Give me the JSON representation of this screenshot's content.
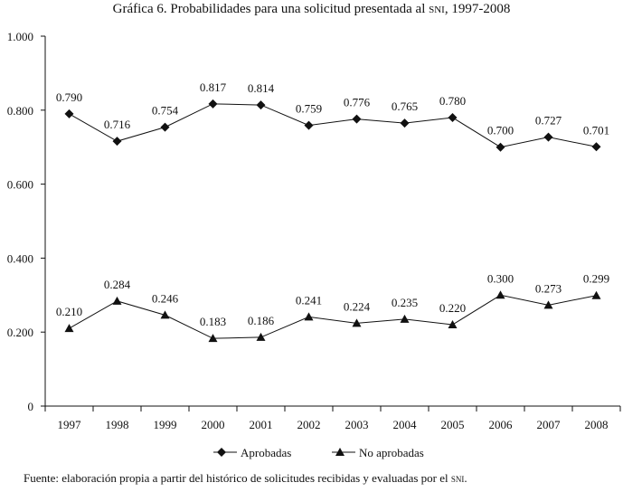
{
  "chart_data": {
    "type": "line",
    "title_main": "Gráfica 6. Probabilidades para una solicitud presentada al ",
    "title_abbr": "SNI",
    "title_years": ", 1997-2008",
    "categories": [
      "1997",
      "1998",
      "1999",
      "2000",
      "2001",
      "2002",
      "2003",
      "2004",
      "2005",
      "2006",
      "2007",
      "2008"
    ],
    "ylim": [
      0,
      1.0
    ],
    "y_ticks": [
      0,
      0.2,
      0.4,
      0.6,
      0.8,
      1.0
    ],
    "y_tick_labels": [
      "0",
      "0.200",
      "0.400",
      "0.600",
      "0.800",
      "1.000"
    ],
    "series": [
      {
        "name": "Aprobadas",
        "marker": "diamond",
        "values": [
          0.79,
          0.716,
          0.754,
          0.817,
          0.814,
          0.759,
          0.776,
          0.765,
          0.78,
          0.7,
          0.727,
          0.701
        ],
        "labels": [
          "0.790",
          "0.716",
          "0.754",
          "0.817",
          "0.814",
          "0.759",
          "0.776",
          "0.765",
          "0.780",
          "0.700",
          "0.727",
          "0.701"
        ]
      },
      {
        "name": "No aprobadas",
        "marker": "triangle",
        "values": [
          0.21,
          0.284,
          0.246,
          0.183,
          0.186,
          0.241,
          0.224,
          0.235,
          0.22,
          0.3,
          0.273,
          0.299
        ],
        "labels": [
          "0.210",
          "0.284",
          "0.246",
          "0.183",
          "0.186",
          "0.241",
          "0.224",
          "0.235",
          "0.220",
          "0.300",
          "0.273",
          "0.299"
        ]
      }
    ],
    "legend_position": "bottom-center",
    "note_main": "Fuente: elaboración propia a partir del histórico de solicitudes recibidas y evaluadas por el ",
    "note_abbr": "SNI",
    "note_end": "."
  }
}
